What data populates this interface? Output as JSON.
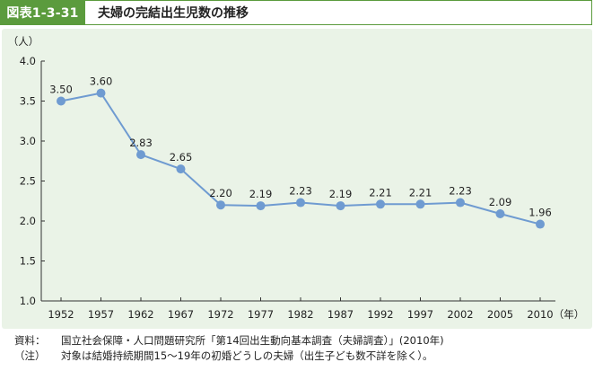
{
  "header": {
    "badge": "図表1-3-31",
    "title": "夫婦の完結出生児数の推移"
  },
  "chart_data": {
    "type": "line",
    "x": [
      "1952",
      "1957",
      "1962",
      "1967",
      "1972",
      "1977",
      "1982",
      "1987",
      "1992",
      "1997",
      "2002",
      "2005",
      "2010"
    ],
    "series": [
      {
        "values": [
          3.5,
          3.6,
          2.83,
          2.65,
          2.2,
          2.19,
          2.23,
          2.19,
          2.21,
          2.21,
          2.23,
          2.09,
          1.96
        ]
      }
    ],
    "data_labels": [
      "3.50",
      "3.60",
      "2.83",
      "2.65",
      "2.20",
      "2.19",
      "2.23",
      "2.19",
      "2.21",
      "2.21",
      "2.23",
      "2.09",
      "1.96"
    ],
    "ylim": [
      1.0,
      4.0
    ],
    "yticks": [
      "1.0",
      "1.5",
      "2.0",
      "2.5",
      "3.0",
      "3.5",
      "4.0"
    ],
    "y_unit": "（人）",
    "x_unit": "（年）",
    "grid": false,
    "color": "#6f9bd1"
  },
  "footer": {
    "source_label": "資料：",
    "source_text": "国立社会保障・人口問題研究所「第14回出生動向基本調査（夫婦調査）」(2010年)",
    "note_label": "（注）",
    "note_text": "対象は結婚持続期間15～19年の初婚どうしの夫婦（出生子ども数不詳を除く）。"
  }
}
